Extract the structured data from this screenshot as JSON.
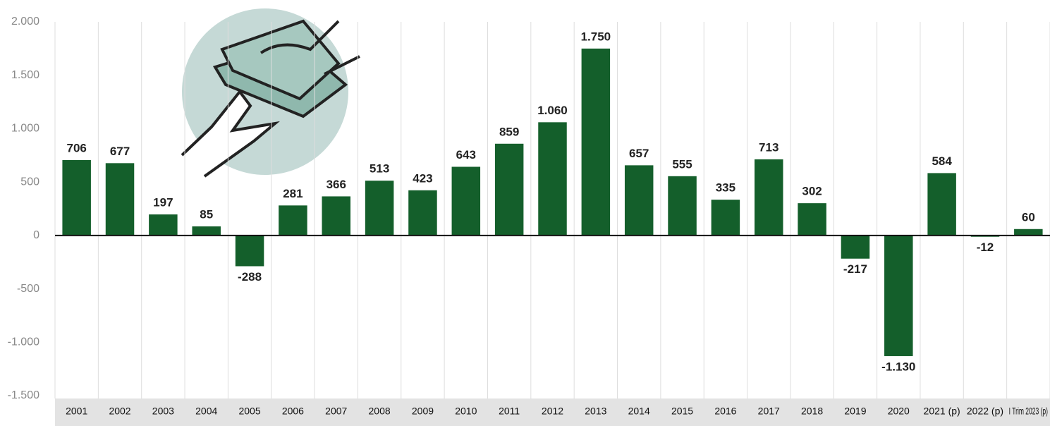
{
  "chart_data": {
    "type": "bar",
    "categories": [
      "2001",
      "2002",
      "2003",
      "2004",
      "2005",
      "2006",
      "2007",
      "2008",
      "2009",
      "2010",
      "2011",
      "2012",
      "2013",
      "2014",
      "2015",
      "2016",
      "2017",
      "2018",
      "2019",
      "2020",
      "2021 (p)",
      "2022 (p)",
      "I Trim 2023 (p)"
    ],
    "values": [
      706,
      677,
      197,
      85,
      -288,
      281,
      366,
      513,
      423,
      643,
      859,
      1060,
      1750,
      657,
      555,
      335,
      713,
      302,
      -217,
      -1130,
      584,
      -12,
      60
    ],
    "value_labels": [
      "706",
      "677",
      "197",
      "85",
      "-288",
      "281",
      "366",
      "513",
      "423",
      "643",
      "859",
      "1.060",
      "1.750",
      "657",
      "555",
      "335",
      "713",
      "302",
      "-217",
      "-1.130",
      "584",
      "-12",
      "60"
    ],
    "color": "#145f2b",
    "ylim": [
      -1500,
      2000
    ],
    "yticks": [
      {
        "value": -1500,
        "label": "-1.500"
      },
      {
        "value": -1000,
        "label": "-1.000"
      },
      -500,
      0,
      500,
      {
        "value": 1000,
        "label": "1.000"
      },
      {
        "value": 1500,
        "label": "1.500"
      },
      {
        "value": 2000,
        "label": "2.000"
      }
    ],
    "grid": true
  }
}
